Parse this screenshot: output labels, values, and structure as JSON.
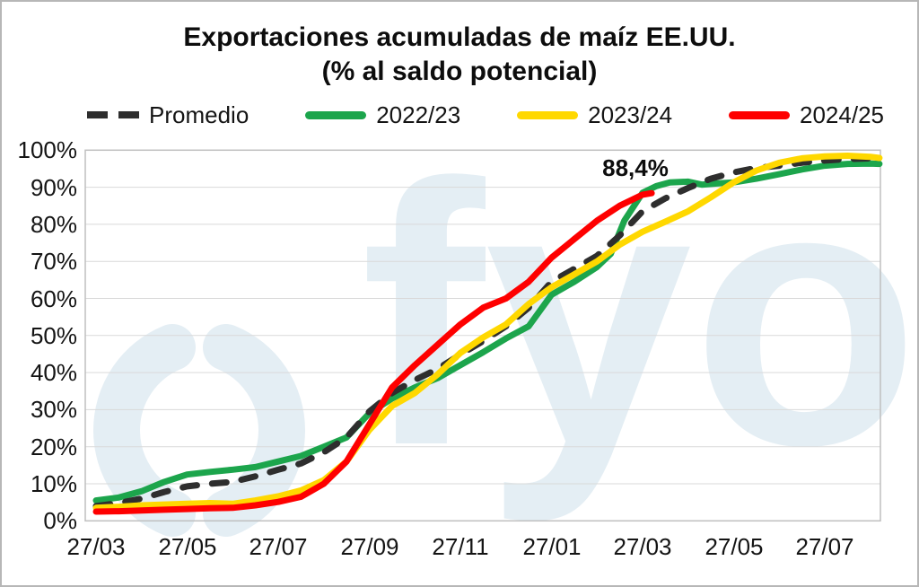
{
  "chart_data": {
    "type": "line",
    "title": "Exportaciones acumuladas de maíz EE.UU.",
    "subtitle": "(% al saldo potencial)",
    "watermark": "fyo",
    "watermark_color": "#e4eef4",
    "grid": true,
    "gridline_color": "#d9d9d9",
    "plot_border_color": "#bfbfbf",
    "legend_position": "top",
    "ylim": [
      0,
      100
    ],
    "y_tick_labels": [
      "0%",
      "10%",
      "20%",
      "30%",
      "40%",
      "50%",
      "60%",
      "70%",
      "80%",
      "90%",
      "100%"
    ],
    "x_tick_labels": [
      "27/03",
      "27/05",
      "27/07",
      "27/09",
      "27/11",
      "27/01",
      "27/03",
      "27/05",
      "27/07"
    ],
    "x_tick_months": [
      0,
      2,
      4,
      6,
      8,
      10,
      12,
      14,
      16
    ],
    "annotation": {
      "label": "88,4%",
      "month": 11.85,
      "value": 95.2
    },
    "series": [
      {
        "name": "Promedio",
        "color": "#2e2e2e",
        "dashed": true,
        "points": [
          [
            0,
            4
          ],
          [
            0.5,
            4.8
          ],
          [
            1,
            6
          ],
          [
            1.5,
            7.8
          ],
          [
            2,
            9.3
          ],
          [
            2.5,
            10
          ],
          [
            3,
            10.5
          ],
          [
            3.5,
            12
          ],
          [
            4,
            13.8
          ],
          [
            4.5,
            15.5
          ],
          [
            5,
            18.5
          ],
          [
            5.5,
            22.5
          ],
          [
            6,
            29.5
          ],
          [
            6.3,
            32.5
          ],
          [
            6.5,
            34.5
          ],
          [
            7,
            38
          ],
          [
            7.5,
            41
          ],
          [
            8,
            44.9
          ],
          [
            8.5,
            48.5
          ],
          [
            9,
            52.5
          ],
          [
            9.5,
            57.5
          ],
          [
            10,
            64.5
          ],
          [
            10.5,
            68
          ],
          [
            11,
            71.5
          ],
          [
            11.5,
            77
          ],
          [
            12,
            83.5
          ],
          [
            12.5,
            87
          ],
          [
            13,
            89.8
          ],
          [
            13.5,
            92.3
          ],
          [
            14,
            94
          ],
          [
            14.5,
            95.2
          ],
          [
            15,
            95.8
          ],
          [
            15.5,
            96.6
          ],
          [
            16,
            97.2
          ],
          [
            16.5,
            97.6
          ],
          [
            17,
            97.8
          ],
          [
            17.2,
            97.8
          ]
        ]
      },
      {
        "name": "2022/23",
        "color": "#1ca54c",
        "dashed": false,
        "points": [
          [
            0,
            5.5
          ],
          [
            0.5,
            6.3
          ],
          [
            1,
            8
          ],
          [
            1.5,
            10.5
          ],
          [
            2,
            12.5
          ],
          [
            2.5,
            13.2
          ],
          [
            3,
            13.8
          ],
          [
            3.5,
            14.5
          ],
          [
            4,
            16
          ],
          [
            4.5,
            17.5
          ],
          [
            5,
            20
          ],
          [
            5.5,
            22.5
          ],
          [
            6,
            29
          ],
          [
            6.5,
            33
          ],
          [
            7,
            36
          ],
          [
            7.5,
            38.5
          ],
          [
            8,
            42
          ],
          [
            8.5,
            45.5
          ],
          [
            9,
            49.2
          ],
          [
            9.5,
            52.5
          ],
          [
            10,
            61
          ],
          [
            10.5,
            64.5
          ],
          [
            11,
            68.5
          ],
          [
            11.3,
            72
          ],
          [
            11.6,
            81
          ],
          [
            12,
            88.5
          ],
          [
            12.3,
            90.3
          ],
          [
            12.6,
            91.3
          ],
          [
            13,
            91.5
          ],
          [
            13.3,
            90.7
          ],
          [
            13.6,
            91
          ],
          [
            14,
            91.3
          ],
          [
            14.5,
            92.3
          ],
          [
            15,
            93.5
          ],
          [
            15.5,
            94.8
          ],
          [
            16,
            95.8
          ],
          [
            16.5,
            96.3
          ],
          [
            17,
            96.4
          ],
          [
            17.2,
            96.3
          ]
        ]
      },
      {
        "name": "2023/24",
        "color": "#ffd800",
        "dashed": false,
        "points": [
          [
            0,
            3.5
          ],
          [
            0.5,
            3.8
          ],
          [
            1,
            4.2
          ],
          [
            1.5,
            4.4
          ],
          [
            2,
            4.6
          ],
          [
            2.5,
            4.8
          ],
          [
            3,
            4.6
          ],
          [
            3.5,
            5.5
          ],
          [
            4,
            6.6
          ],
          [
            4.5,
            8.2
          ],
          [
            5,
            11
          ],
          [
            5.5,
            16
          ],
          [
            6,
            24.5
          ],
          [
            6.5,
            31
          ],
          [
            7,
            34.5
          ],
          [
            7.5,
            39.5
          ],
          [
            8,
            45.3
          ],
          [
            8.5,
            49.5
          ],
          [
            9,
            53
          ],
          [
            9.5,
            58.5
          ],
          [
            10,
            63
          ],
          [
            10.5,
            66.5
          ],
          [
            11,
            70
          ],
          [
            11.5,
            74.5
          ],
          [
            12,
            78
          ],
          [
            12.5,
            80.7
          ],
          [
            13,
            83.5
          ],
          [
            13.5,
            87.3
          ],
          [
            14,
            91.3
          ],
          [
            14.5,
            94.5
          ],
          [
            15,
            96.6
          ],
          [
            15.5,
            97.8
          ],
          [
            16,
            98.3
          ],
          [
            16.5,
            98.5
          ],
          [
            17,
            98.2
          ],
          [
            17.2,
            97.9
          ]
        ]
      },
      {
        "name": "2024/25",
        "color": "#fe0000",
        "dashed": false,
        "points": [
          [
            0,
            2.5
          ],
          [
            0.5,
            2.6
          ],
          [
            1,
            2.8
          ],
          [
            1.5,
            3
          ],
          [
            2,
            3.2
          ],
          [
            2.5,
            3.4
          ],
          [
            3,
            3.5
          ],
          [
            3.5,
            4.2
          ],
          [
            4,
            5.1
          ],
          [
            4.5,
            6.5
          ],
          [
            5,
            10
          ],
          [
            5.5,
            16
          ],
          [
            6,
            26
          ],
          [
            6.5,
            36
          ],
          [
            7,
            42
          ],
          [
            7.5,
            47.5
          ],
          [
            8,
            53
          ],
          [
            8.5,
            57.5
          ],
          [
            9,
            60
          ],
          [
            9.5,
            64.5
          ],
          [
            10,
            71
          ],
          [
            10.5,
            76
          ],
          [
            11,
            81
          ],
          [
            11.5,
            85
          ],
          [
            12,
            88
          ],
          [
            12.2,
            88.4
          ]
        ]
      }
    ]
  }
}
